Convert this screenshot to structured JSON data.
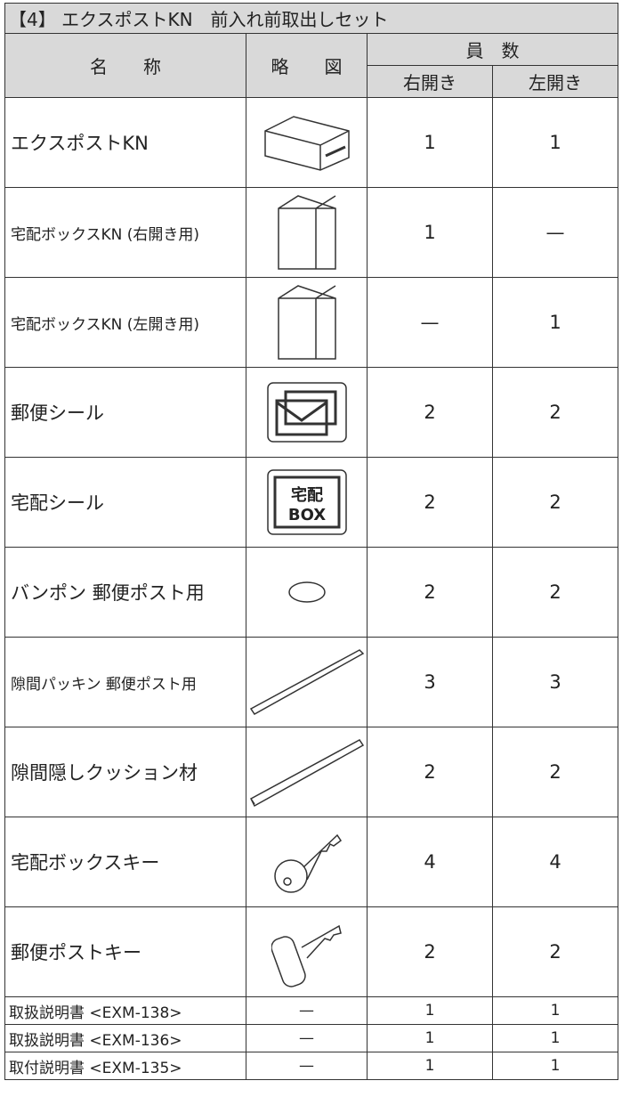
{
  "title": "【4】 エクスポストKN　前入れ前取出しセット",
  "header": {
    "name": "名　　称",
    "figure": "略　　図",
    "count": "員　数",
    "right": "右開き",
    "left": "左開き"
  },
  "rows": [
    {
      "name": "エクスポストKN",
      "right": "1",
      "left": "1"
    },
    {
      "name": "宅配ボックスKN (右開き用)",
      "right": "1",
      "left": "—"
    },
    {
      "name": "宅配ボックスKN (左開き用)",
      "right": "—",
      "left": "1"
    },
    {
      "name": "郵便シール",
      "right": "2",
      "left": "2"
    },
    {
      "name": "宅配シール",
      "right": "2",
      "left": "2"
    },
    {
      "name": "バンポン 郵便ポスト用",
      "right": "2",
      "left": "2"
    },
    {
      "name": "隙間パッキン 郵便ポスト用",
      "right": "3",
      "left": "3"
    },
    {
      "name": "隙間隠しクッション材",
      "right": "2",
      "left": "2"
    },
    {
      "name": "宅配ボックスキー",
      "right": "4",
      "left": "4"
    },
    {
      "name": "郵便ポストキー",
      "right": "2",
      "left": "2"
    }
  ],
  "docs": [
    {
      "name": "取扱説明書 <EXM-138>",
      "figure": "—",
      "right": "1",
      "left": "1"
    },
    {
      "name": "取扱説明書 <EXM-136>",
      "figure": "—",
      "right": "1",
      "left": "1"
    },
    {
      "name": "取付説明書 <EXM-135>",
      "figure": "—",
      "right": "1",
      "left": "1"
    }
  ]
}
